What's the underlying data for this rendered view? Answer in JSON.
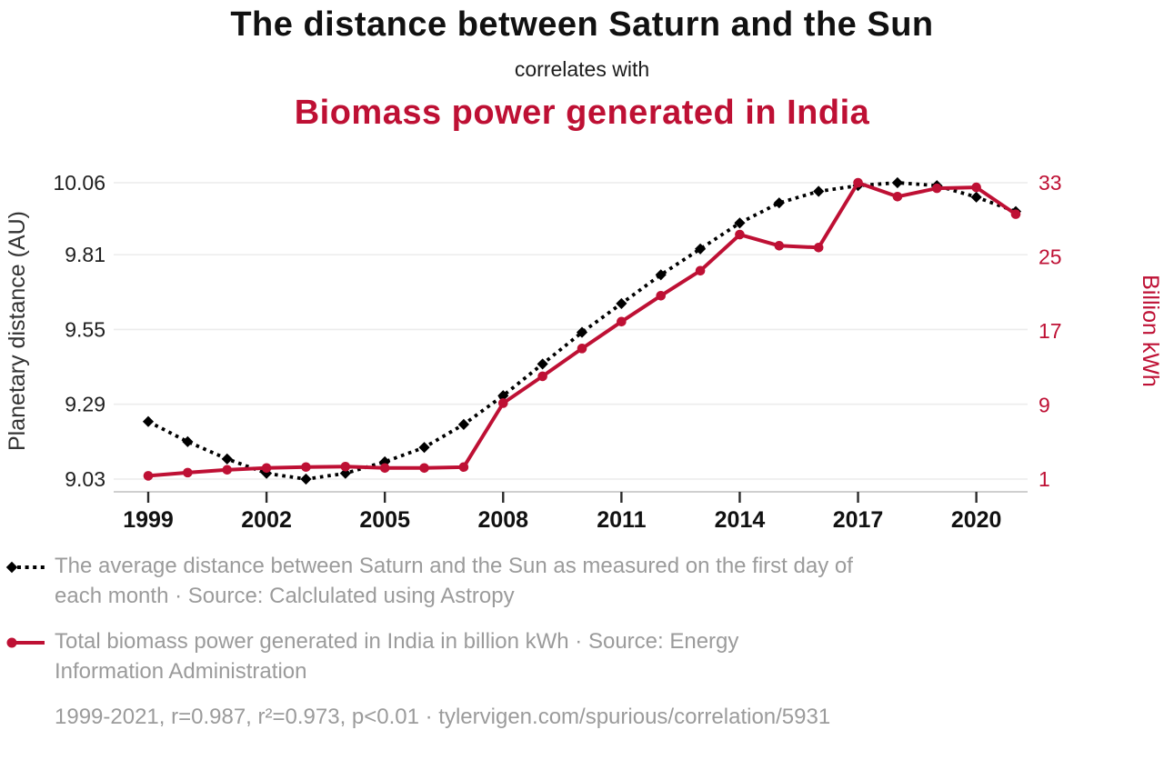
{
  "header": {
    "title": "The distance between Saturn and the Sun",
    "connector": "correlates with",
    "title2": "Biomass power generated in India"
  },
  "colors": {
    "accent_red": "#be1034",
    "series_black": "#000000",
    "legend_gray": "#9b9b9b",
    "gridline": "#ececec",
    "axis_line": "#bfbfbf",
    "tick_mark": "#2b2b2b",
    "tick_label": "#1f1f1f",
    "year_label": "#111111",
    "axis_title": "#333333"
  },
  "chart_data": {
    "type": "line",
    "title": "The distance between Saturn and the Sun correlates with Biomass power generated in India",
    "x": [
      1999,
      2000,
      2001,
      2002,
      2003,
      2004,
      2005,
      2006,
      2007,
      2008,
      2009,
      2010,
      2011,
      2012,
      2013,
      2014,
      2015,
      2016,
      2017,
      2018,
      2019,
      2020,
      2021
    ],
    "x_ticks": [
      1999,
      2002,
      2005,
      2008,
      2011,
      2014,
      2017,
      2020
    ],
    "grid": "horizontal",
    "legend_position": "below",
    "series": [
      {
        "name": "The average distance between Saturn and the Sun",
        "axis": "left",
        "style": "dotted-diamond",
        "color": "#000000",
        "values": [
          9.23,
          9.16,
          9.1,
          9.05,
          9.03,
          9.05,
          9.09,
          9.14,
          9.22,
          9.32,
          9.43,
          9.54,
          9.64,
          9.74,
          9.83,
          9.92,
          9.99,
          10.03,
          10.05,
          10.06,
          10.05,
          10.01,
          9.96
        ]
      },
      {
        "name": "Total biomass power generated in India",
        "axis": "right",
        "style": "solid-circle",
        "color": "#be1034",
        "values": [
          1.35,
          1.7,
          2.0,
          2.2,
          2.3,
          2.35,
          2.2,
          2.2,
          2.3,
          9.2,
          12.1,
          15.1,
          18.0,
          20.8,
          23.5,
          27.4,
          26.2,
          26.0,
          33.0,
          31.5,
          32.4,
          32.5,
          29.6
        ]
      }
    ],
    "left_axis": {
      "label": "Planetary distance (AU)",
      "ticks": [
        9.03,
        9.29,
        9.55,
        9.81,
        10.06
      ],
      "range": [
        9.03,
        10.06
      ],
      "tick_format": "2dp"
    },
    "right_axis": {
      "label": "Billion kWh",
      "ticks": [
        1,
        9,
        17,
        25,
        33
      ],
      "range": [
        1,
        33
      ],
      "tick_format": "int"
    }
  },
  "legend": {
    "items": [
      {
        "marker": "black-diamond-dotted-line",
        "lines": [
          "The average distance between Saturn and the Sun as measured on the first day of",
          "each month · Source: Calclulated using Astropy"
        ]
      },
      {
        "marker": "red-circle-solid-line",
        "lines": [
          "Total biomass power generated in India in billion kWh · Source: Energy",
          "Information Administration"
        ]
      }
    ],
    "stats": "1999-2021, r=0.987, r²=0.973, p<0.01 · tylervigen.com/spurious/correlation/5931"
  }
}
